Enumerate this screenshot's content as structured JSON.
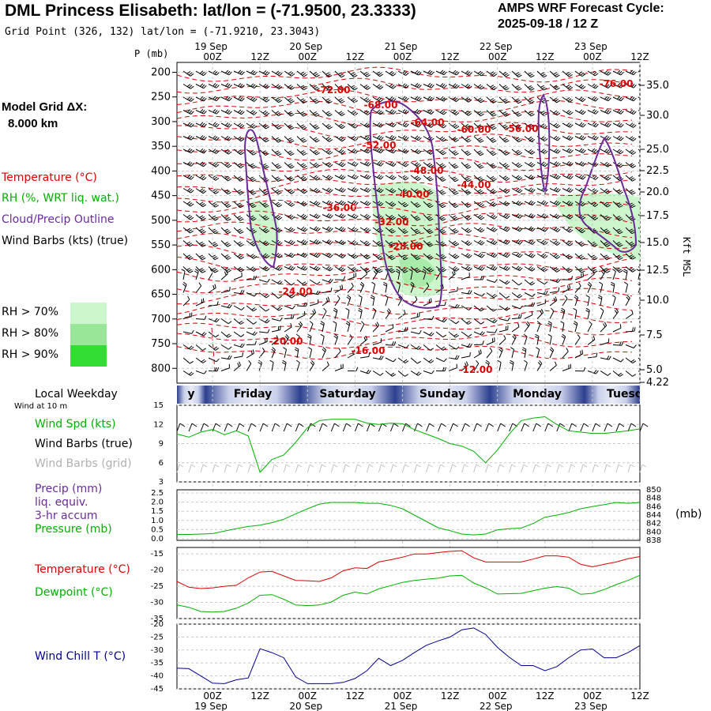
{
  "header": {
    "title": "DML Princess Elisabeth:  lat/lon = (-71.9500, 23.3333)",
    "subtitle": "Grid Point (326, 132) lat/lon = (-71.9210, 23.3043)",
    "cycle_label": "AMPS WRF Forecast Cycle:",
    "cycle_value": "2025-09-18 / 12  Z"
  },
  "left_panel": {
    "model_grid_label": "Model Grid ΔX:",
    "model_grid_value": "8.000 km",
    "legend_temperature": "Temperature (°C)",
    "legend_rh": "RH (%, WRT liq. wat.)",
    "legend_cloud": "Cloud/Precip Outline",
    "legend_wind": "Wind Barbs (kts) (true)",
    "rh70": "RH > 70%",
    "rh80": "RH > 80%",
    "rh90": "RH > 90%"
  },
  "colors": {
    "temperature": "#dd0000",
    "rh70": "#ccf7cc",
    "rh80": "#99e699",
    "rh90": "#33dd33",
    "cloud": "#6a2a9a",
    "wind_speed": "#00b000",
    "pressure": "#00b000",
    "dewpoint": "#00b000",
    "wind_chill": "#000090"
  },
  "time_axis": {
    "top_hours": [
      "00Z",
      "12Z",
      "00Z",
      "12Z",
      "00Z",
      "12Z",
      "00Z",
      "12Z",
      "00Z",
      "12Z"
    ],
    "top_dates": [
      "19 Sep",
      "20 Sep",
      "21 Sep",
      "22 Sep",
      "23 Sep"
    ],
    "bottom_hours": [
      "00Z",
      "12Z",
      "00Z",
      "12Z",
      "00Z",
      "12Z",
      "00Z",
      "12Z",
      "00Z",
      "12Z"
    ],
    "bottom_dates": [
      "19 Sep",
      "20 Sep",
      "21 Sep",
      "22 Sep",
      "23 Sep"
    ]
  },
  "weekday_bar": {
    "label": "Local Weekday",
    "sublabel": "Wind at 10 m",
    "days": [
      "y",
      "Friday",
      "Saturday",
      "Sunday",
      "Monday",
      "Tuesd"
    ]
  },
  "panel_labels": {
    "wind_spd": "Wind Spd (kts)",
    "wind_barbs_true": "Wind Barbs (true)",
    "wind_barbs_grid": "Wind Barbs (grid)",
    "precip": "Precip (mm)",
    "precip_liq": "liq. equiv.",
    "precip_accum": "3-hr accum",
    "pressure": "Pressure (mb)",
    "pressure_unit": "(mb)",
    "temperature": "Temperature (°C)",
    "dewpoint": "Dewpoint (°C)",
    "wind_chill": "Wind Chill T (°C)"
  },
  "chart_data": [
    {
      "type": "contour",
      "name": "cross-section",
      "p_label": "P (mb)",
      "pressure_ticks": [
        200,
        250,
        300,
        350,
        400,
        450,
        500,
        550,
        600,
        650,
        700,
        750,
        800
      ],
      "height_label": "Kft MSL",
      "height_ticks": [
        "35.0",
        "30.0",
        "25.0",
        "22.5",
        "20.0",
        "17.5",
        "15.0",
        "12.5",
        "10.0",
        "7.5",
        "5.0",
        "4.22"
      ],
      "temperature_labels": [
        "-72.00",
        "-76.00",
        "-68.00",
        "-64.00",
        "-60.00",
        "-56.00",
        "-52.00",
        "-48.00",
        "-44.00",
        "-40.00",
        "-36.00",
        "-32.00",
        "-28.00",
        "-24.00",
        "-20.00",
        "-16.00",
        "-12.00"
      ]
    },
    {
      "type": "line",
      "name": "wind-speed",
      "y_ticks": [
        "15",
        "12",
        "9",
        "6",
        "3"
      ],
      "ylim": [
        3,
        15
      ],
      "x_hours": [
        0,
        3,
        6,
        9,
        12,
        15,
        18,
        21,
        24,
        27,
        30,
        33,
        36,
        39,
        42,
        45,
        48,
        51,
        54,
        57,
        60,
        63,
        66,
        69,
        72,
        75,
        78,
        81,
        84,
        87,
        90,
        93,
        96,
        99,
        102,
        105,
        108,
        111,
        114,
        117
      ],
      "values": [
        10.5,
        10.0,
        10.8,
        11.2,
        10.4,
        11.0,
        10.2,
        4.5,
        6.5,
        7.2,
        9.2,
        11.5,
        12.6,
        12.8,
        12.8,
        12.8,
        12.2,
        12.0,
        12.2,
        12.1,
        11.2,
        10.5,
        9.8,
        9.0,
        8.6,
        7.8,
        6.0,
        8.0,
        10.5,
        12.6,
        13.0,
        13.2,
        12.0,
        11.0,
        10.8,
        10.6,
        10.6,
        10.8,
        11.0,
        11.3
      ]
    },
    {
      "type": "line",
      "name": "pressure",
      "y_ticks_left": [
        "2.5",
        "2.0",
        "1.5",
        "1.0",
        "0.5",
        "0.0"
      ],
      "y_ticks_right": [
        "850",
        "848",
        "846",
        "844",
        "842",
        "840",
        "838"
      ],
      "ylim": [
        838,
        850
      ],
      "values": [
        839.4,
        839.4,
        839.5,
        839.6,
        840.2,
        840.8,
        841.3,
        841.6,
        842.2,
        843.0,
        844.3,
        845.5,
        846.6,
        847.0,
        847.0,
        847.0,
        846.8,
        846.8,
        846.3,
        845.5,
        844.0,
        842.5,
        841.0,
        840.3,
        839.5,
        839.3,
        839.5,
        840.5,
        840.8,
        840.9,
        842.0,
        843.5,
        844.0,
        844.6,
        845.5,
        846.0,
        846.5,
        847.0,
        846.8,
        847.0
      ]
    },
    {
      "type": "line",
      "name": "temperature-dewpoint",
      "y_ticks": [
        "-15",
        "-20",
        "-25",
        "-30",
        "-35"
      ],
      "ylim": [
        -35,
        -13
      ],
      "series": [
        {
          "name": "Temperature",
          "values": [
            -23.5,
            -25.3,
            -25.7,
            -25.5,
            -25.0,
            -24.7,
            -22.4,
            -20.6,
            -20.4,
            -21.8,
            -23.2,
            -23.3,
            -23.5,
            -22.4,
            -20.2,
            -19.3,
            -19.5,
            -17.5,
            -16.8,
            -16.0,
            -15.0,
            -15.0,
            -14.6,
            -14.2,
            -14.0,
            -16.2,
            -17.5,
            -17.5,
            -17.5,
            -17.5,
            -16.6,
            -15.6,
            -15.6,
            -16.0,
            -18.2,
            -19.0,
            -18.2,
            -17.5,
            -16.5,
            -15.8
          ]
        },
        {
          "name": "Dewpoint",
          "values": [
            -30.8,
            -31.5,
            -32.8,
            -33.0,
            -32.8,
            -31.8,
            -30.2,
            -27.8,
            -27.6,
            -29.0,
            -30.8,
            -31.0,
            -30.8,
            -29.9,
            -27.8,
            -26.8,
            -27.4,
            -25.8,
            -24.8,
            -23.8,
            -23.2,
            -22.8,
            -22.5,
            -21.8,
            -21.6,
            -24.0,
            -25.5,
            -27.4,
            -27.3,
            -27.2,
            -26.4,
            -25.6,
            -25.1,
            -25.6,
            -27.5,
            -27.2,
            -26.0,
            -24.5,
            -23.2,
            -21.6
          ]
        }
      ]
    },
    {
      "type": "line",
      "name": "wind-chill",
      "y_ticks": [
        "-20",
        "-25",
        "-30",
        "-35",
        "-40",
        "-45"
      ],
      "ylim": [
        -45,
        -20
      ],
      "values": [
        -37.0,
        -37.2,
        -40.0,
        -42.8,
        -43.0,
        -41.5,
        -40.8,
        -29.5,
        -31.0,
        -33.0,
        -40.4,
        -43.0,
        -43.0,
        -43.0,
        -42.5,
        -41.0,
        -38.0,
        -33.2,
        -36.0,
        -34.0,
        -31.0,
        -28.2,
        -26.5,
        -25.0,
        -22.2,
        -21.5,
        -24.0,
        -29.0,
        -32.8,
        -36.0,
        -36.0,
        -38.0,
        -36.4,
        -33.0,
        -30.0,
        -29.6,
        -33.0,
        -33.0,
        -31.0,
        -28.3
      ]
    }
  ]
}
